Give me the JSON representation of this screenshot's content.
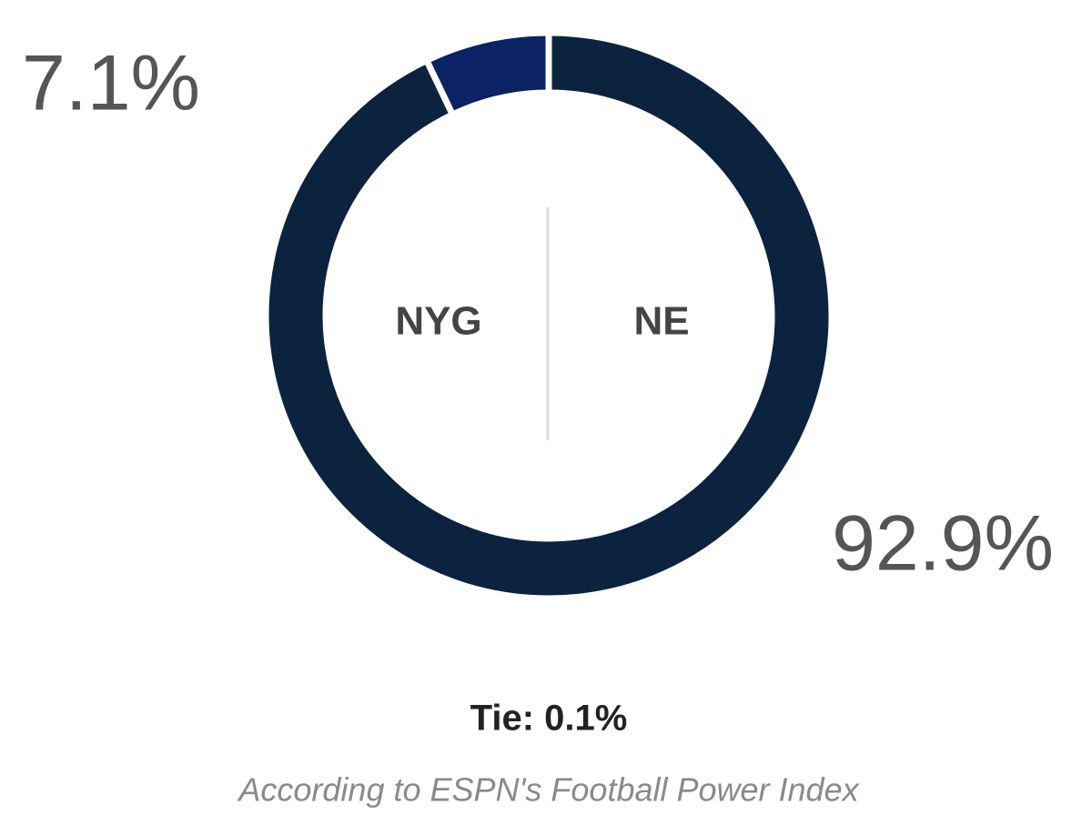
{
  "chart_data": {
    "type": "donut",
    "categories": [
      "NYG",
      "NE"
    ],
    "values": [
      7.1,
      92.9
    ],
    "value_labels": [
      "7.1%",
      "92.9%"
    ],
    "colors": [
      "#0b2265",
      "#0c2340"
    ],
    "tie": "Tie: 0.1%",
    "footnote": "According to ESPN's Football Power Index"
  }
}
